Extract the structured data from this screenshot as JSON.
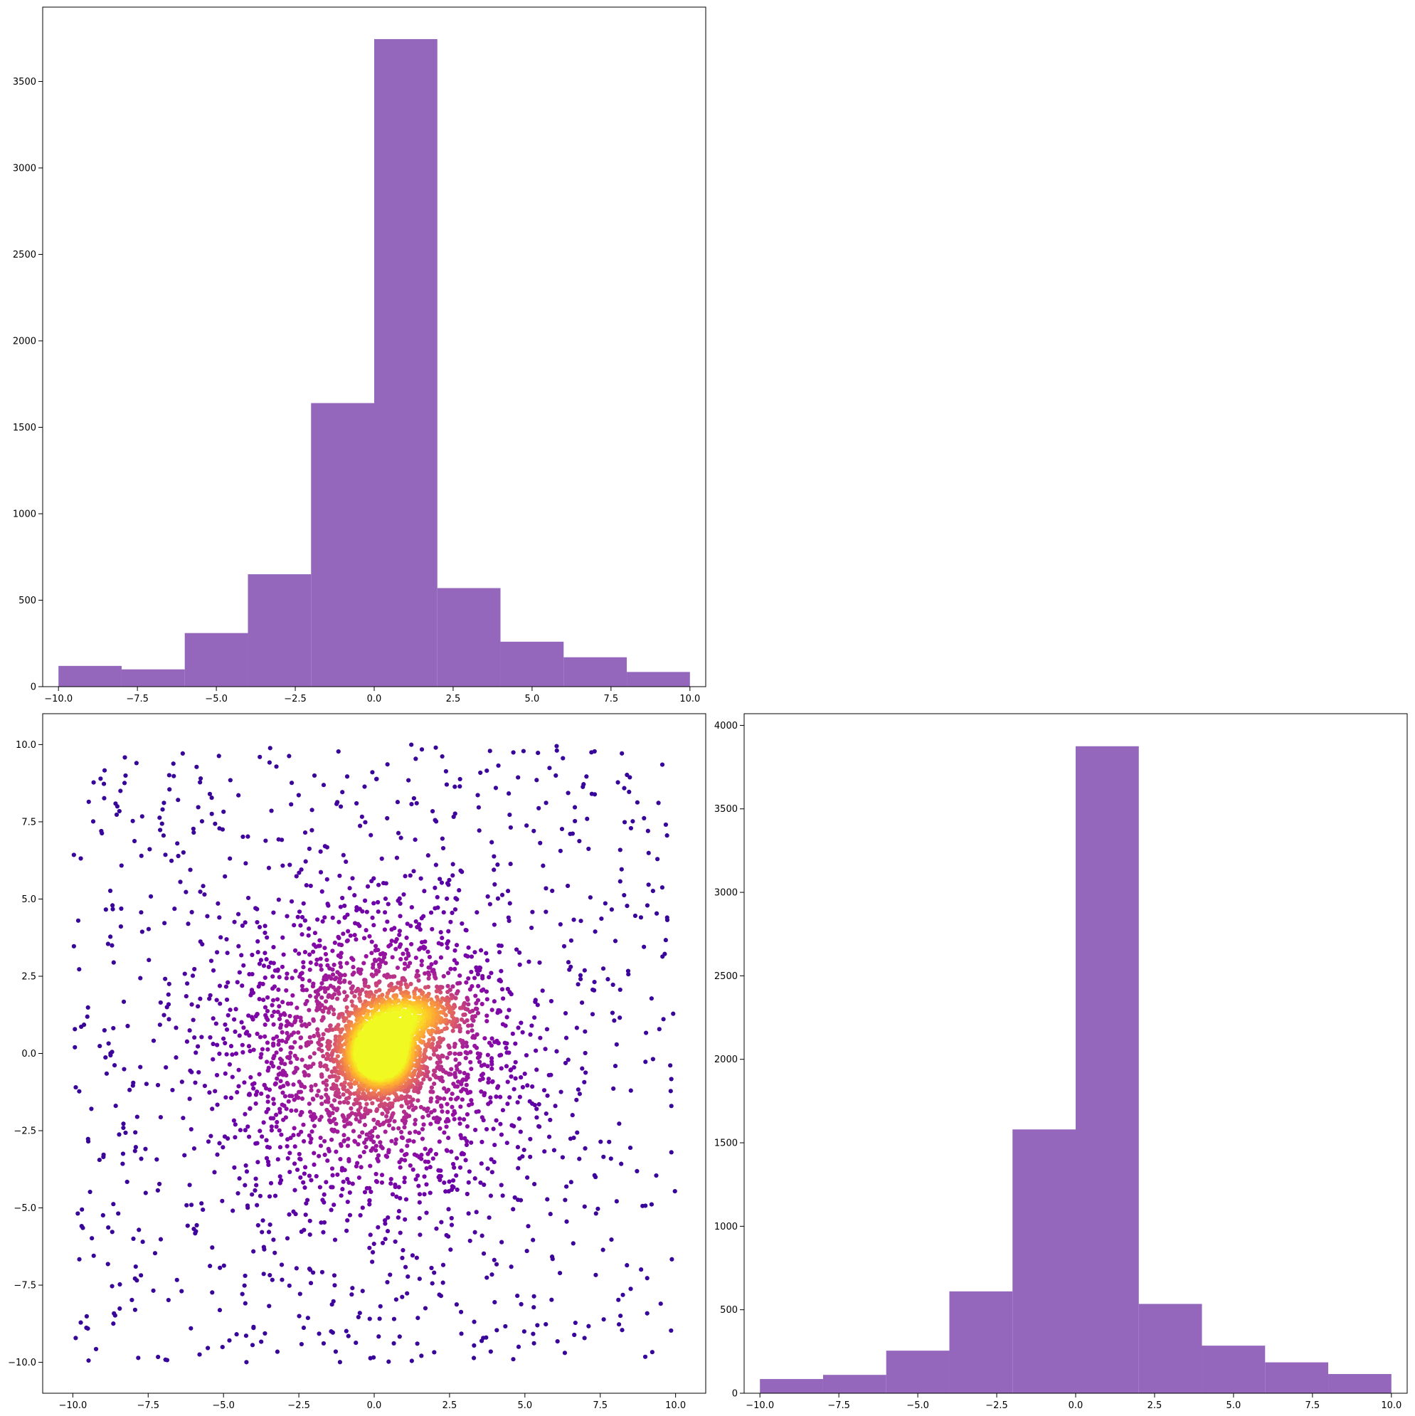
{
  "chart_data": [
    {
      "id": "hist_x",
      "type": "bar",
      "subtype": "histogram",
      "bin_edges": [
        -10,
        -8,
        -6,
        -4,
        -2,
        0,
        2,
        4,
        6,
        8,
        10
      ],
      "values": [
        120,
        100,
        310,
        650,
        1640,
        3745,
        570,
        260,
        170,
        85
      ],
      "color": "#9467bd",
      "orientation": "vertical",
      "xlim": [
        -10.5,
        10.5
      ],
      "ylim": [
        0,
        3930
      ],
      "xticks": [
        -10.0,
        -7.5,
        -5.0,
        -2.5,
        0.0,
        2.5,
        5.0,
        7.5,
        10.0
      ],
      "xtick_labels": [
        "−10.0",
        "−7.5",
        "−5.0",
        "−2.5",
        "0.0",
        "2.5",
        "5.0",
        "7.5",
        "10.0"
      ],
      "yticks": [
        0,
        500,
        1000,
        1500,
        2000,
        2500,
        3000,
        3500
      ],
      "ytick_labels": [
        "0",
        "500",
        "1000",
        "1500",
        "2000",
        "2500",
        "3000",
        "3500"
      ],
      "grid": false
    },
    {
      "id": "scatter_xy",
      "type": "scatter",
      "colormap": "plasma",
      "color_encodes": "point density",
      "marker_color_low": "#3b049a",
      "marker_color_high": "#f0f921",
      "structure": {
        "uniform_background": {
          "x_range": [
            -10,
            10
          ],
          "y_range": [
            -10,
            10
          ],
          "n": 900
        },
        "broad_cluster": {
          "center": [
            0,
            0
          ],
          "std": 2.5,
          "n": 1900
        },
        "dense_core": {
          "center": [
            0.2,
            0
          ],
          "std": 0.6,
          "n": 2600
        },
        "secondary_cluster": {
          "center": [
            1.3,
            1.3
          ],
          "std": [
            0.7,
            0.35
          ],
          "n": 420
        }
      },
      "xlim": [
        -11,
        11
      ],
      "ylim": [
        -11,
        11
      ],
      "xticks": [
        -10.0,
        -7.5,
        -5.0,
        -2.5,
        0.0,
        2.5,
        5.0,
        7.5,
        10.0
      ],
      "xtick_labels": [
        "−10.0",
        "−7.5",
        "−5.0",
        "−2.5",
        "0.0",
        "2.5",
        "5.0",
        "7.5",
        "10.0"
      ],
      "yticks": [
        -10.0,
        -7.5,
        -5.0,
        -2.5,
        0.0,
        2.5,
        5.0,
        7.5,
        10.0
      ],
      "ytick_labels": [
        "−10.0",
        "−7.5",
        "−5.0",
        "−2.5",
        "0.0",
        "2.5",
        "5.0",
        "7.5",
        "10.0"
      ],
      "grid": false
    },
    {
      "id": "hist_y",
      "type": "bar",
      "subtype": "histogram",
      "bin_edges": [
        -10,
        -8,
        -6,
        -4,
        -2,
        0,
        2,
        4,
        6,
        8,
        10
      ],
      "values": [
        85,
        110,
        255,
        610,
        1580,
        3875,
        535,
        285,
        185,
        115
      ],
      "color": "#9467bd",
      "orientation": "vertical",
      "xlim": [
        -10.5,
        10.5
      ],
      "ylim": [
        0,
        4070
      ],
      "xticks": [
        -10.0,
        -7.5,
        -5.0,
        -2.5,
        0.0,
        2.5,
        5.0,
        7.5,
        10.0
      ],
      "xtick_labels": [
        "−10.0",
        "−7.5",
        "−5.0",
        "−2.5",
        "0.0",
        "2.5",
        "5.0",
        "7.5",
        "10.0"
      ],
      "yticks": [
        0,
        500,
        1000,
        1500,
        2000,
        2500,
        3000,
        3500,
        4000
      ],
      "ytick_labels": [
        "0",
        "500",
        "1000",
        "1500",
        "2000",
        "2500",
        "3000",
        "3500",
        "4000"
      ],
      "grid": false
    }
  ]
}
